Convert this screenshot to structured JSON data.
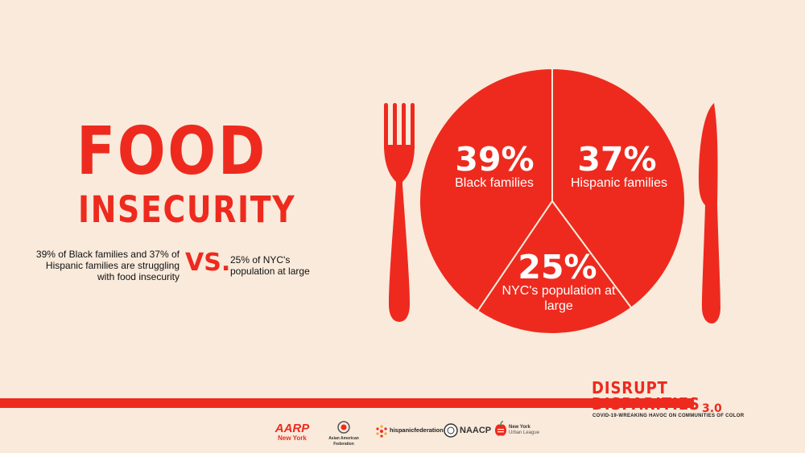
{
  "title": {
    "line1": "FOOD",
    "line2": "INSECURITY"
  },
  "comparison": {
    "left": "39% of Black families and 37% of Hispanic families are struggling with food insecurity",
    "vs": "VS.",
    "right": "25% of NYC's population at large"
  },
  "chart_data": {
    "type": "pie",
    "title": "",
    "slices": [
      {
        "value": "39%",
        "label": "Black families"
      },
      {
        "value": "37%",
        "label": "Hispanic families"
      },
      {
        "value": "25%",
        "label": "NYC's population at large"
      }
    ]
  },
  "branding": {
    "line1": "DISRUPT",
    "line2": "DISPARITIES",
    "version": "3.0",
    "tagline": "COVID-19-WREAKING HAVOC ON COMMUNITIES OF COLOR"
  },
  "logos": {
    "aarp": "AARP",
    "aarp_sub": "New York",
    "aaf": "Asian American Federation",
    "hf": "hispanicfederation",
    "naacp": "NAACP",
    "nyul1": "New York",
    "nyul2": "Urban League"
  },
  "colors": {
    "accent": "#ee2a1e",
    "background": "#f9eadb"
  }
}
